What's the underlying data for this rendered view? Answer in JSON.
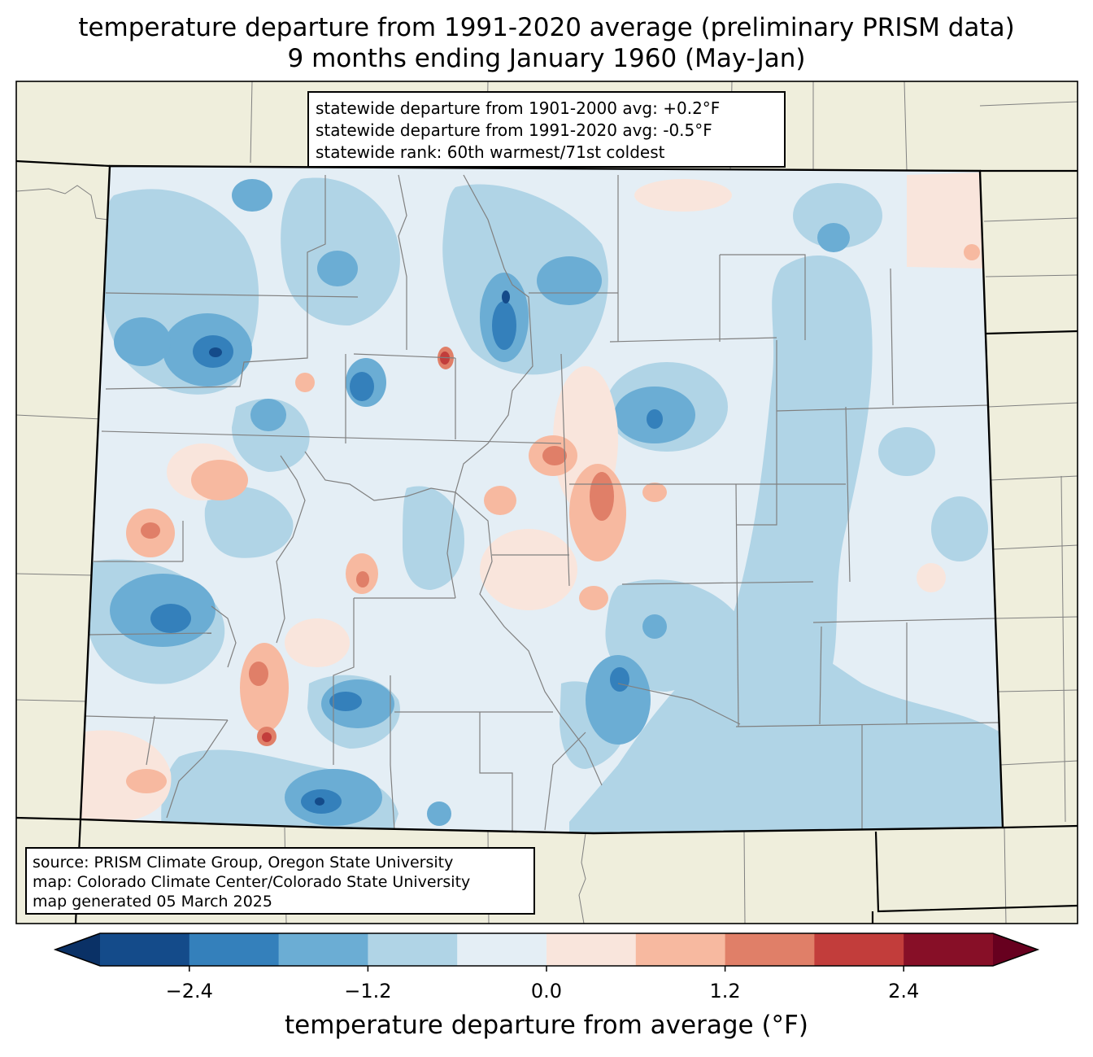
{
  "title": {
    "line1": "temperature departure from 1991-2020 average (preliminary PRISM data)",
    "line2": "9 months ending January 1960 (May-Jan)"
  },
  "stats_box": {
    "line1": "statewide departure from 1901-2000 avg: +0.2°F",
    "line2": "statewide departure from 1991-2020 avg: -0.5°F",
    "line3": "statewide rank: 60th warmest/71st coldest"
  },
  "source_box": {
    "line1": "source: PRISM Climate Group, Oregon State University",
    "line2": "map: Colorado Climate Center/Colorado State University",
    "line3": "map generated 05 March 2025"
  },
  "colorbar": {
    "label": "temperature departure from average (°F)",
    "ticks": [
      {
        "value": -2.4,
        "label": "−2.4"
      },
      {
        "value": -1.2,
        "label": "−1.2"
      },
      {
        "value": 0.0,
        "label": "0.0"
      },
      {
        "value": 1.2,
        "label": "1.2"
      },
      {
        "value": 2.4,
        "label": "2.4"
      }
    ],
    "range": [
      -3.0,
      3.0
    ],
    "bins": [
      {
        "from": -3.0,
        "to": -2.4,
        "color": "#144b8a"
      },
      {
        "from": -2.4,
        "to": -1.8,
        "color": "#3480bb"
      },
      {
        "from": -1.8,
        "to": -1.2,
        "color": "#6badd4"
      },
      {
        "from": -1.2,
        "to": -0.6,
        "color": "#b0d4e6"
      },
      {
        "from": -0.6,
        "to": 0.0,
        "color": "#e4eef5"
      },
      {
        "from": 0.0,
        "to": 0.6,
        "color": "#f9e5dc"
      },
      {
        "from": 0.6,
        "to": 1.2,
        "color": "#f7b9a0"
      },
      {
        "from": 1.2,
        "to": 1.8,
        "color": "#e07f68"
      },
      {
        "from": 1.8,
        "to": 2.4,
        "color": "#c23d3b"
      },
      {
        "from": 2.4,
        "to": 3.0,
        "color": "#870f27"
      }
    ],
    "under_color": "#0a3166",
    "over_color": "#67001f"
  },
  "colors": {
    "land": "#efeedc",
    "state_border": "#000000",
    "county_border": "#808080"
  }
}
